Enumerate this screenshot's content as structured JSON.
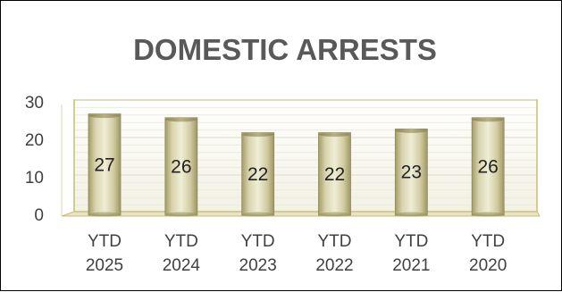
{
  "chart_data": {
    "type": "bar",
    "title": "DOMESTIC ARRESTS",
    "categories": [
      [
        "YTD",
        "2025"
      ],
      [
        "YTD",
        "2024"
      ],
      [
        "YTD",
        "2023"
      ],
      [
        "YTD",
        "2022"
      ],
      [
        "YTD",
        "2021"
      ],
      [
        "YTD",
        "2020"
      ]
    ],
    "values": [
      27,
      26,
      22,
      22,
      23,
      26
    ],
    "data_labels": [
      "27",
      "26",
      "22",
      "22",
      "23",
      "26"
    ],
    "ylim": [
      0,
      30
    ],
    "yticks": [
      0,
      10,
      20,
      30
    ],
    "xlabel": "",
    "ylabel": "",
    "grid": true,
    "legend": "none",
    "colors": {
      "bar_light": "#ece9cf",
      "bar_mid": "#cfc99f",
      "bar_dark": "#a39c6a",
      "bar_edge": "#8f8858",
      "wall": "#f7f6ee",
      "wall_edge": "#c9bd6d",
      "title": "#595959",
      "text": "#404040"
    }
  }
}
